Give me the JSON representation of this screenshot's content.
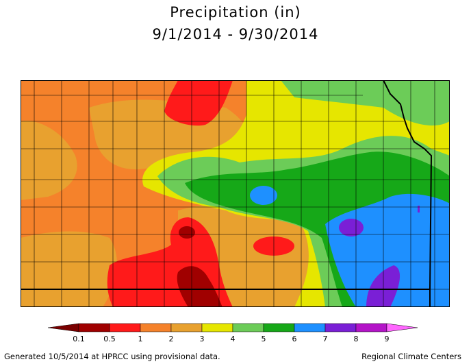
{
  "title": {
    "line1": "Precipitation (in)",
    "line2": "9/1/2014 - 9/30/2014"
  },
  "legend": {
    "bins": [
      {
        "label": "0.1",
        "color": "#a00000"
      },
      {
        "label": "0.5",
        "color": "#ff1a1a"
      },
      {
        "label": "1",
        "color": "#f5822b"
      },
      {
        "label": "2",
        "color": "#e8a12f"
      },
      {
        "label": "3",
        "color": "#e6e600"
      },
      {
        "label": "4",
        "color": "#6ccc58"
      },
      {
        "label": "5",
        "color": "#16a818"
      },
      {
        "label": "6",
        "color": "#1e90ff"
      },
      {
        "label": "7",
        "color": "#7a1fd6"
      },
      {
        "label": "8",
        "color": "#b414c8"
      },
      {
        "label": "9",
        "color": "#ff4cff"
      }
    ],
    "low_arrow_color": "#7a0000",
    "high_arrow_color": "#ff66ff"
  },
  "map": {
    "region": "Kansas (county boundaries)",
    "border_color": "#000000"
  },
  "footer": {
    "left": "Generated 10/5/2014 at HPRCC using provisional data.",
    "right": "Regional Climate Centers"
  }
}
